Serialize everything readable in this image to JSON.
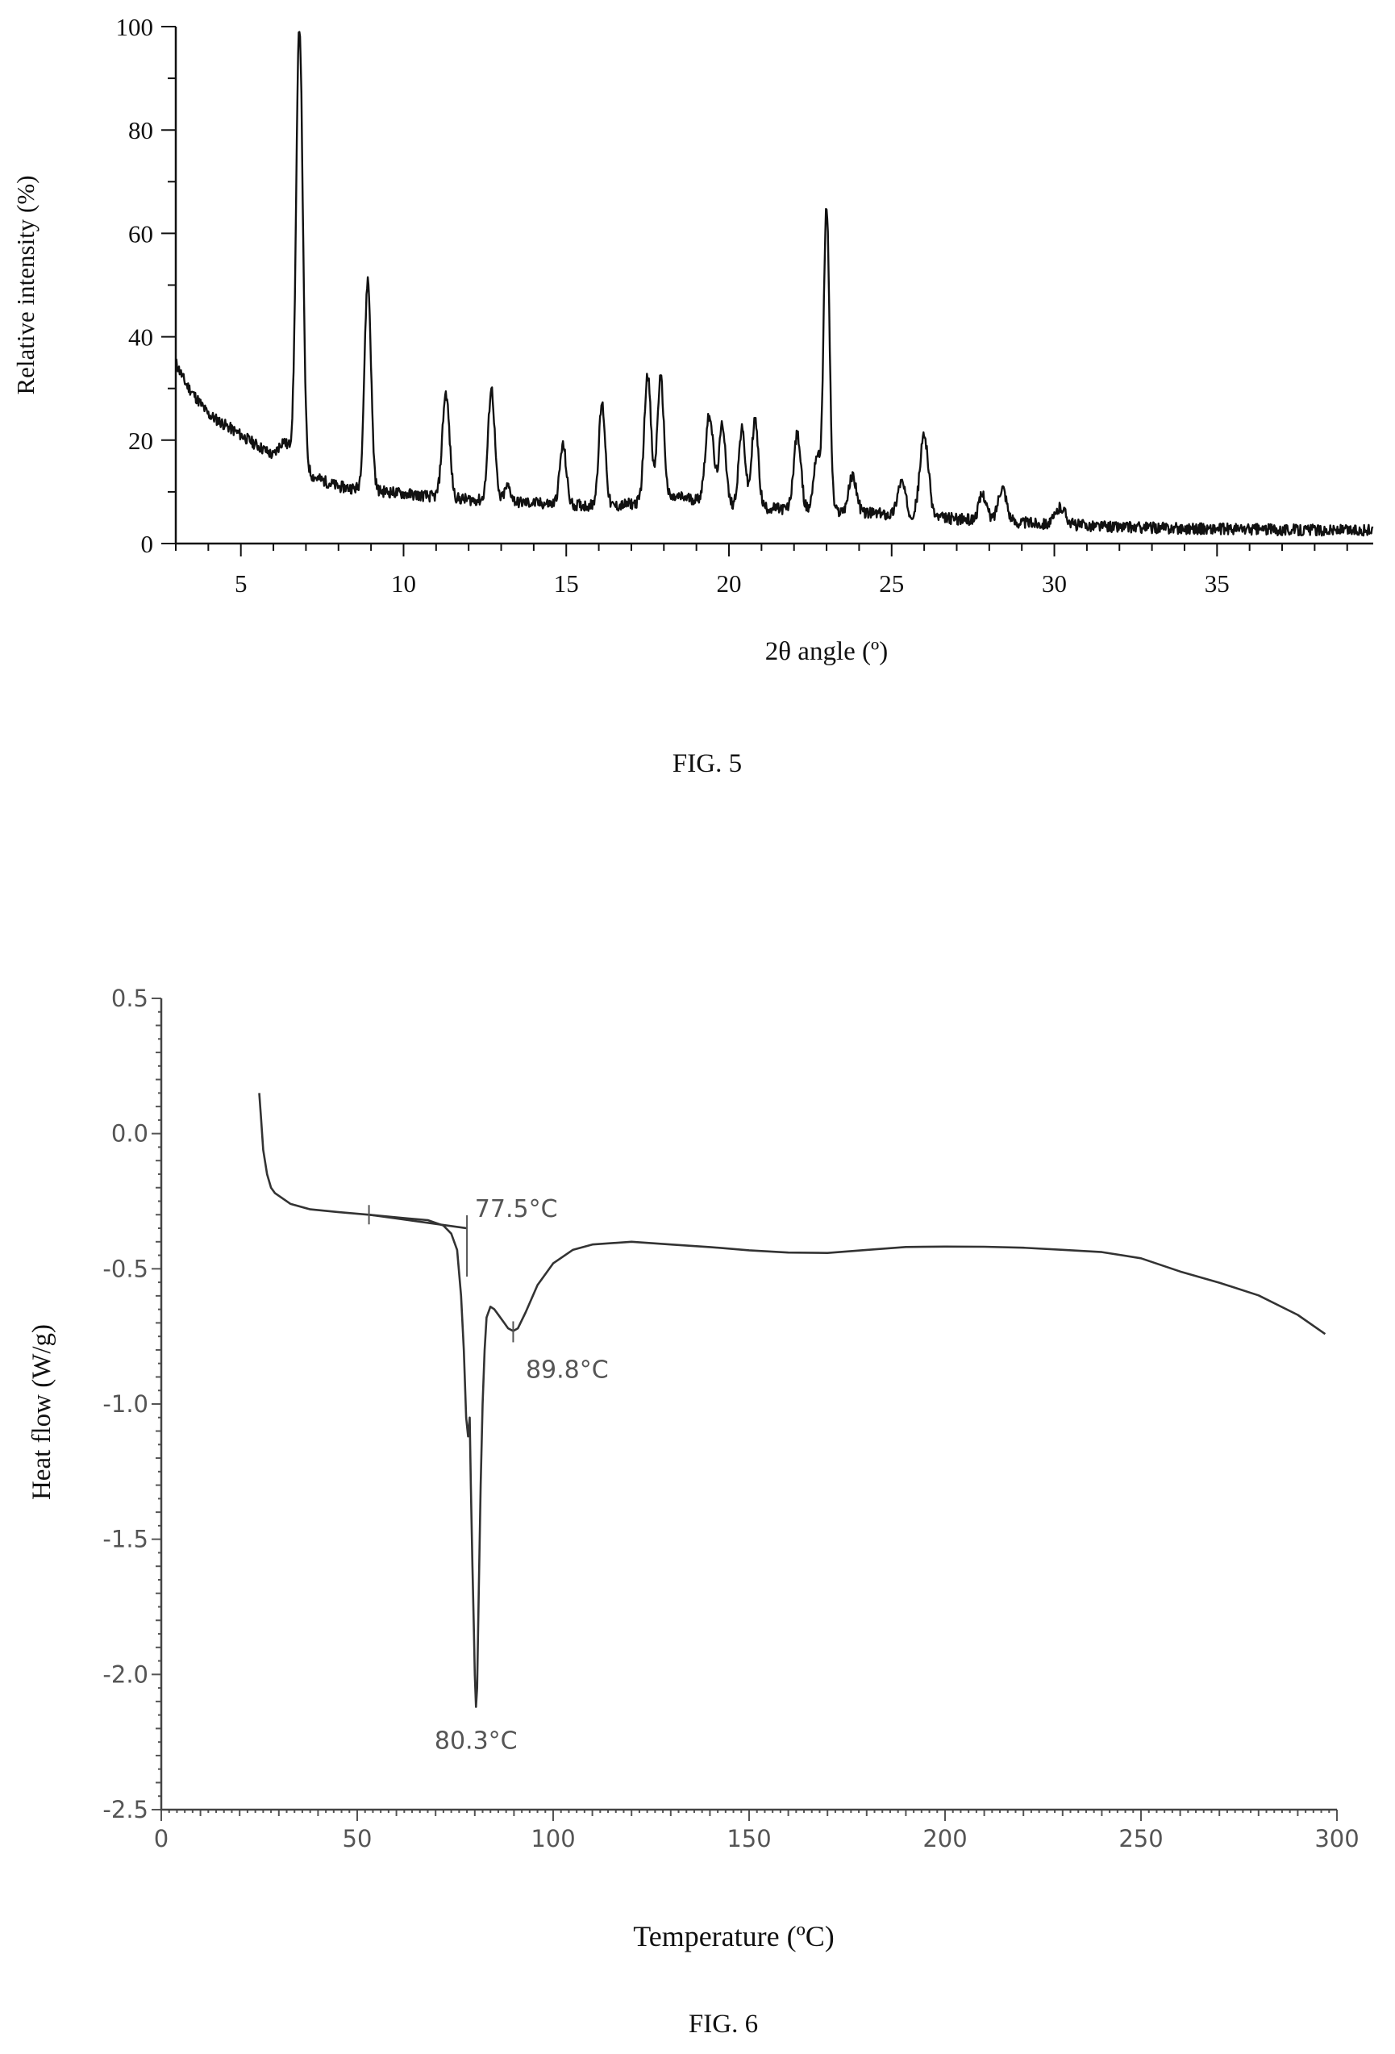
{
  "chart_data": [
    {
      "type": "line",
      "caption": "FIG. 5",
      "title": "",
      "xlabel": "2θ angle (º)",
      "ylabel": "Relative intensity (%)",
      "xlim": [
        3,
        39.8
      ],
      "ylim": [
        0,
        100
      ],
      "xticks": [
        5,
        10,
        15,
        20,
        25,
        30,
        35
      ],
      "yticks": [
        0,
        20,
        40,
        60,
        80,
        100
      ],
      "grid": false,
      "baseline": [
        [
          3.0,
          35
        ],
        [
          3.3,
          31
        ],
        [
          4.0,
          25
        ],
        [
          5.0,
          21
        ],
        [
          6.0,
          17
        ],
        [
          6.3,
          20
        ],
        [
          7.2,
          13
        ],
        [
          8.0,
          11
        ],
        [
          9.5,
          10
        ],
        [
          11.0,
          9
        ],
        [
          12.0,
          8.5
        ],
        [
          13.5,
          8
        ],
        [
          15.0,
          7.5
        ],
        [
          16.5,
          7.2
        ],
        [
          17.3,
          8
        ],
        [
          18.5,
          9
        ],
        [
          20.0,
          7.5
        ],
        [
          22.0,
          6.5
        ],
        [
          24.0,
          6
        ],
        [
          26.5,
          5
        ],
        [
          28.0,
          4.3
        ],
        [
          30.0,
          3.8
        ],
        [
          32.0,
          3.2
        ],
        [
          35.0,
          2.8
        ],
        [
          39.8,
          2.5
        ]
      ],
      "peaks": [
        {
          "x": 6.8,
          "y": 100,
          "w": 0.1
        },
        {
          "x": 8.9,
          "y": 51,
          "w": 0.1
        },
        {
          "x": 11.3,
          "y": 29,
          "w": 0.11
        },
        {
          "x": 12.7,
          "y": 30,
          "w": 0.1
        },
        {
          "x": 13.2,
          "y": 11,
          "w": 0.1
        },
        {
          "x": 14.9,
          "y": 19,
          "w": 0.1
        },
        {
          "x": 16.1,
          "y": 27,
          "w": 0.1
        },
        {
          "x": 17.5,
          "y": 33,
          "w": 0.1
        },
        {
          "x": 17.9,
          "y": 32,
          "w": 0.1
        },
        {
          "x": 19.4,
          "y": 25,
          "w": 0.12
        },
        {
          "x": 19.8,
          "y": 23,
          "w": 0.1
        },
        {
          "x": 20.4,
          "y": 22,
          "w": 0.1
        },
        {
          "x": 20.8,
          "y": 24,
          "w": 0.1
        },
        {
          "x": 22.1,
          "y": 21,
          "w": 0.11
        },
        {
          "x": 22.7,
          "y": 17,
          "w": 0.1
        },
        {
          "x": 23.0,
          "y": 65,
          "w": 0.09
        },
        {
          "x": 23.8,
          "y": 13,
          "w": 0.12
        },
        {
          "x": 25.3,
          "y": 12,
          "w": 0.12
        },
        {
          "x": 26.0,
          "y": 21,
          "w": 0.13
        },
        {
          "x": 27.8,
          "y": 9.5,
          "w": 0.12
        },
        {
          "x": 28.4,
          "y": 11,
          "w": 0.13
        },
        {
          "x": 30.2,
          "y": 7,
          "w": 0.15
        }
      ]
    },
    {
      "type": "line",
      "caption": "FIG. 6",
      "title": "",
      "xlabel": "Temperature (ºC)",
      "ylabel": "Heat flow (W/g)",
      "xlim": [
        0,
        300
      ],
      "ylim": [
        -2.5,
        0.5
      ],
      "xticks": [
        0,
        50,
        100,
        150,
        200,
        250,
        300
      ],
      "xtick_labels": [
        "0",
        "50",
        "100",
        "150",
        "200",
        "250",
        "300"
      ],
      "yticks": [
        -2.5,
        -2.0,
        -1.5,
        -1.0,
        -0.5,
        0.0,
        0.5
      ],
      "ytick_labels": [
        "-2.5",
        "-2.0",
        "-1.5",
        "-1.0",
        "-0.5",
        "0.0",
        "0.5"
      ],
      "grid": false,
      "series": [
        {
          "x": [
            25,
            25.5,
            26,
            27,
            28,
            29,
            30,
            33,
            38,
            45,
            53,
            60,
            68,
            72,
            74,
            75.5,
            76.5,
            77.2,
            77.8,
            78.3,
            78.7,
            79.0,
            79.4,
            79.8,
            80.0,
            80.3,
            80.6,
            81.0,
            81.5,
            82.0,
            82.5,
            83.0,
            84.0,
            85.0,
            86.0,
            87.5,
            88.5,
            89.8,
            91,
            93,
            96,
            100,
            105,
            110,
            120,
            130,
            140,
            150,
            160,
            170,
            180,
            190,
            200,
            210,
            220,
            230,
            240,
            250,
            260,
            270,
            280,
            290,
            297
          ],
          "y": [
            0.15,
            0.05,
            -0.06,
            -0.15,
            -0.2,
            -0.22,
            -0.23,
            -0.26,
            -0.28,
            -0.29,
            -0.3,
            -0.31,
            -0.32,
            -0.34,
            -0.37,
            -0.43,
            -0.6,
            -0.8,
            -1.05,
            -1.12,
            -1.05,
            -1.3,
            -1.6,
            -1.85,
            -2.0,
            -2.12,
            -2.05,
            -1.7,
            -1.3,
            -1.0,
            -0.8,
            -0.68,
            -0.64,
            -0.65,
            -0.67,
            -0.7,
            -0.72,
            -0.73,
            -0.72,
            -0.66,
            -0.56,
            -0.48,
            -0.43,
            -0.41,
            -0.4,
            -0.41,
            -0.42,
            -0.43,
            -0.44,
            -0.44,
            -0.43,
            -0.42,
            -0.42,
            -0.42,
            -0.42,
            -0.43,
            -0.44,
            -0.46,
            -0.51,
            -0.55,
            -0.6,
            -0.67,
            -0.74
          ]
        },
        {
          "x": [
            53,
            78
          ],
          "y": [
            -0.3,
            -0.35
          ]
        }
      ],
      "annotations": [
        {
          "text": "77.5°C",
          "x": 77.5,
          "y": -0.35
        },
        {
          "text": "89.8°C",
          "x": 89.8,
          "y": -0.73
        },
        {
          "text": "80.3°C",
          "x": 80.3,
          "y": -2.12
        }
      ]
    }
  ]
}
